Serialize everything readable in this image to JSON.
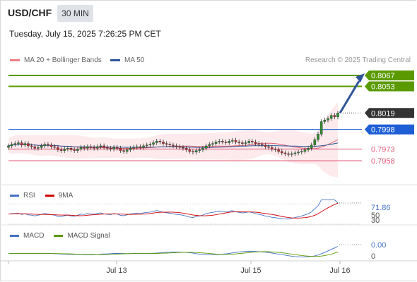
{
  "header": {
    "symbol": "USD/CHF",
    "timeframe": "30 MIN",
    "datetime": "Tuesday, July 15, 2025 7:26:25 PM CET"
  },
  "legend": {
    "bollinger_label": "MA 20 + Bollinger Bands",
    "bollinger_color": "#f08080",
    "ma50_label": "MA 50",
    "ma50_color": "#2f5597",
    "research": "Research © 2025 Trading Central"
  },
  "chart_data": [
    {
      "type": "candlestick",
      "title": "USD/CHF",
      "ylim": [
        0.7925,
        0.8075
      ],
      "current_price": 0.8019,
      "levels": [
        {
          "value": 0.8067,
          "kind": "resistance",
          "color": "#5a9a00"
        },
        {
          "value": 0.8053,
          "kind": "resistance",
          "color": "#5a9a00"
        },
        {
          "value": 0.7998,
          "kind": "pivot",
          "color": "#1f5fd6"
        },
        {
          "value": 0.7973,
          "kind": "support",
          "color": "#e05a78"
        },
        {
          "value": 0.7958,
          "kind": "support",
          "color": "#e05a78"
        }
      ],
      "level_labels": [
        "0.8067",
        "0.8053",
        "0.8019",
        "0.7998",
        "0.7973",
        "0.7958"
      ],
      "closes": [
        0.7977,
        0.7979,
        0.798,
        0.7981,
        0.7978,
        0.798,
        0.7977,
        0.7976,
        0.7974,
        0.7975,
        0.7977,
        0.7979,
        0.7978,
        0.7976,
        0.7975,
        0.7972,
        0.7971,
        0.7973,
        0.7974,
        0.7972,
        0.7971,
        0.7973,
        0.7975,
        0.7974,
        0.7976,
        0.7975,
        0.7974,
        0.7976,
        0.7977,
        0.7975,
        0.7974,
        0.7973,
        0.7975,
        0.7974,
        0.7971,
        0.797,
        0.7972,
        0.7974,
        0.7975,
        0.7976,
        0.7975,
        0.7977,
        0.7978,
        0.7979,
        0.7981,
        0.7983,
        0.7982,
        0.798,
        0.7979,
        0.7978,
        0.7977,
        0.7976,
        0.7975,
        0.7974,
        0.7972,
        0.797,
        0.7969,
        0.7971,
        0.7972,
        0.7974,
        0.7977,
        0.7979,
        0.798,
        0.7982,
        0.7983,
        0.7982,
        0.7981,
        0.7983,
        0.7984,
        0.7982,
        0.7981,
        0.798,
        0.7981,
        0.7983,
        0.7982,
        0.798,
        0.7979,
        0.7978,
        0.7976,
        0.7975,
        0.7973,
        0.7972,
        0.797,
        0.7968,
        0.7967,
        0.7966,
        0.7967,
        0.7968,
        0.7969,
        0.797,
        0.7972,
        0.7974,
        0.7978,
        0.7985,
        0.7992,
        0.8008,
        0.801,
        0.8012,
        0.8016,
        0.8014,
        0.8019
      ],
      "x_tick_labels": [
        "Jul 13",
        "Jul 15",
        "Jul 16"
      ],
      "forecast_target": 0.8067
    },
    {
      "type": "line",
      "title": "RSI",
      "series": [
        {
          "name": "RSI",
          "color": "#4472c4"
        },
        {
          "name": "9MA",
          "color": "#d00000"
        }
      ],
      "ylim": [
        30,
        80
      ],
      "y_tick_labels": [
        "71.86",
        "50",
        "30"
      ],
      "last_value": 71.86
    },
    {
      "type": "line",
      "title": "MACD",
      "series": [
        {
          "name": "MACD",
          "color": "#4472c4"
        },
        {
          "name": "MACD Signal",
          "color": "#5a9a00"
        }
      ],
      "y_tick_labels": [
        "0.00",
        "0"
      ],
      "last_value": 0.0
    }
  ]
}
